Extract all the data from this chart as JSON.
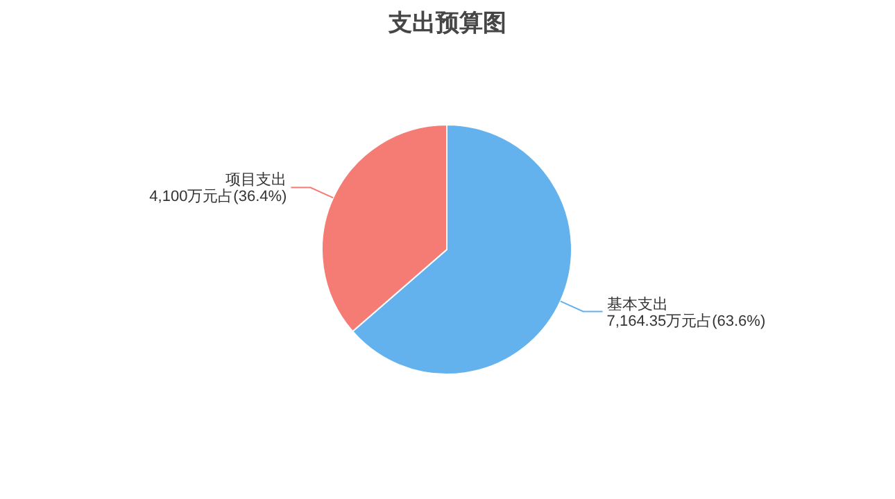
{
  "chart_data": {
    "type": "pie",
    "title": "支出预算图",
    "categories": [
      "基本支出",
      "项目支出"
    ],
    "values": [
      7164.35,
      4100
    ],
    "value_labels": [
      "7,164.35万元占(63.6%)",
      "4,100万元占(36.4%)"
    ],
    "colors": [
      "#63b2ee",
      "#f47c74"
    ]
  }
}
